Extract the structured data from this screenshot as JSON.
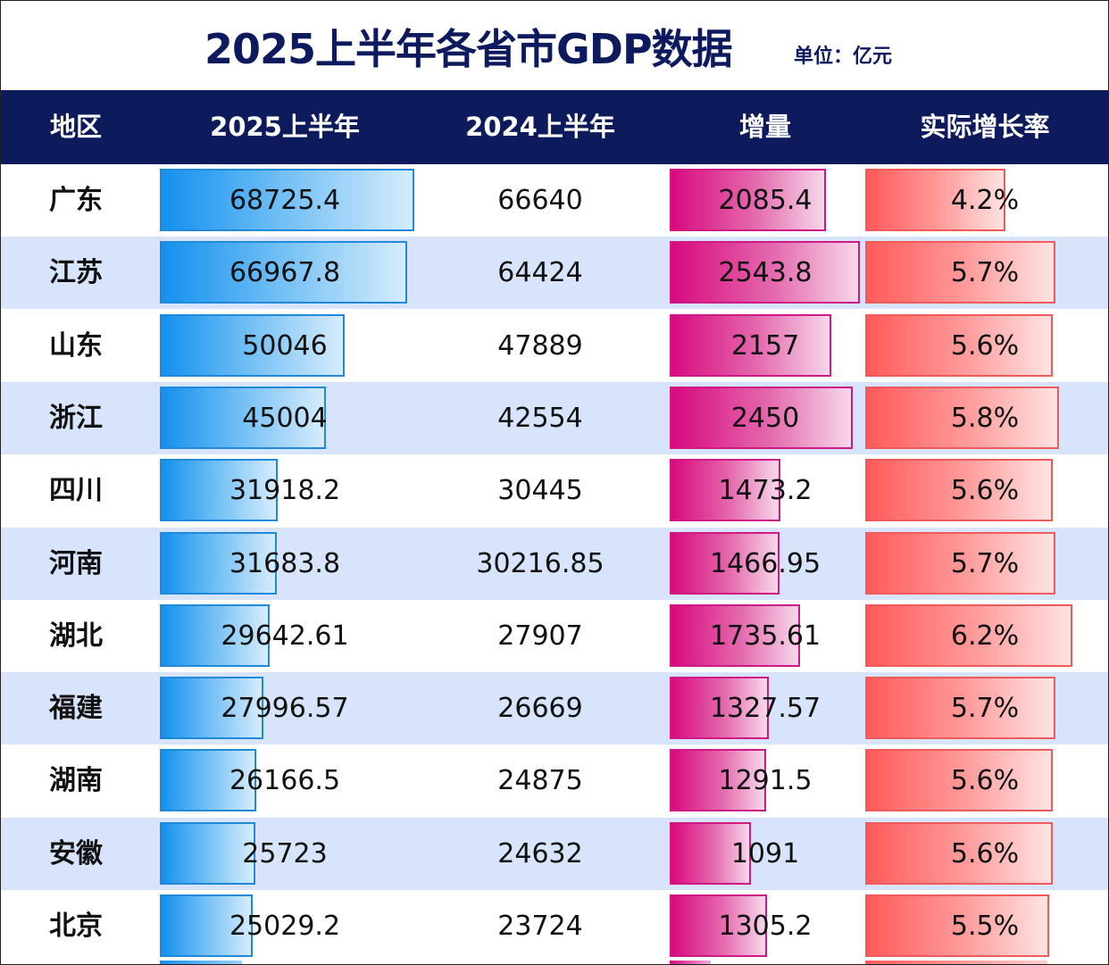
{
  "title": "2025上半年各省市GDP数据",
  "unit": "单位：亿元",
  "colors": {
    "title": "#0e1a5e",
    "header_bg": "#0d1a5c",
    "alt_row": "#d7e4fb",
    "bar_2025": "#1490ee",
    "bar_increase": "#d8097e",
    "bar_rate": "#ff5a5a"
  },
  "chart_data": {
    "type": "table",
    "title": "2025上半年各省市GDP数据",
    "unit": "单位：亿元",
    "columns": [
      "地区",
      "2025上半年",
      "2024上半年",
      "增量",
      "实际增长率"
    ],
    "rows": [
      {
        "region": "广东",
        "gdp_2025": "68725.4",
        "gdp_2024": "66640",
        "increase": "2085.4",
        "rate": "4.2%"
      },
      {
        "region": "江苏",
        "gdp_2025": "66967.8",
        "gdp_2024": "64424",
        "increase": "2543.8",
        "rate": "5.7%"
      },
      {
        "region": "山东",
        "gdp_2025": "50046",
        "gdp_2024": "47889",
        "increase": "2157",
        "rate": "5.6%"
      },
      {
        "region": "浙江",
        "gdp_2025": "45004",
        "gdp_2024": "42554",
        "increase": "2450",
        "rate": "5.8%"
      },
      {
        "region": "四川",
        "gdp_2025": "31918.2",
        "gdp_2024": "30445",
        "increase": "1473.2",
        "rate": "5.6%"
      },
      {
        "region": "河南",
        "gdp_2025": "31683.8",
        "gdp_2024": "30216.85",
        "increase": "1466.95",
        "rate": "5.7%"
      },
      {
        "region": "湖北",
        "gdp_2025": "29642.61",
        "gdp_2024": "27907",
        "increase": "1735.61",
        "rate": "6.2%"
      },
      {
        "region": "福建",
        "gdp_2025": "27996.57",
        "gdp_2024": "26669",
        "increase": "1327.57",
        "rate": "5.7%"
      },
      {
        "region": "湖南",
        "gdp_2025": "26166.5",
        "gdp_2024": "24875",
        "increase": "1291.5",
        "rate": "5.6%"
      },
      {
        "region": "安徽",
        "gdp_2025": "25723",
        "gdp_2024": "24632",
        "increase": "1091",
        "rate": "5.6%"
      },
      {
        "region": "北京",
        "gdp_2025": "25029.2",
        "gdp_2024": "23724",
        "increase": "1305.2",
        "rate": "5.5%"
      }
    ]
  }
}
